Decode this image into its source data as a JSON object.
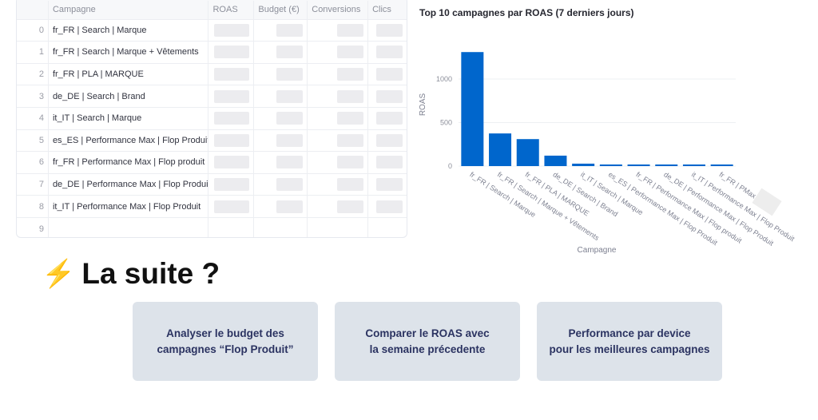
{
  "table": {
    "columns": [
      "",
      "Campagne",
      "ROAS",
      "Budget (€)",
      "Conversions",
      "Clics"
    ],
    "rows": [
      {
        "index": "0",
        "campagne": "fr_FR | Search | Marque"
      },
      {
        "index": "1",
        "campagne": "fr_FR | Search | Marque + Vêtements"
      },
      {
        "index": "2",
        "campagne": "fr_FR | PLA | MARQUE"
      },
      {
        "index": "3",
        "campagne": "de_DE | Search | Brand"
      },
      {
        "index": "4",
        "campagne": "it_IT | Search | Marque"
      },
      {
        "index": "5",
        "campagne": "es_ES | Performance Max | Flop Produit"
      },
      {
        "index": "6",
        "campagne": "fr_FR | Performance Max | Flop produit"
      },
      {
        "index": "7",
        "campagne": "de_DE | Performance Max | Flop Produit"
      },
      {
        "index": "8",
        "campagne": "it_IT | Performance Max | Flop Produit"
      },
      {
        "index": "9",
        "campagne": ""
      }
    ]
  },
  "chart_data": {
    "type": "bar",
    "title": "Top 10 campagnes par ROAS (7 derniers jours)",
    "xlabel": "Campagne",
    "ylabel": "ROAS",
    "ylim": [
      0,
      1350
    ],
    "yticks": [
      "0",
      "500",
      "1000"
    ],
    "categories": [
      "fr_FR | Search | Marque",
      "fr_FR | Search | Marque + Vêtements",
      "fr_FR | PLA | MARQUE",
      "de_DE | Search | Brand",
      "it_IT | Search | Marque",
      "es_ES | Performance Max | Flop Produit",
      "fr_FR | Performance Max | Flop produit",
      "de_DE | Performance Max | Flop Produit",
      "it_IT | Performance Max | Flop Produit",
      "fr_FR | PMax |"
    ],
    "values": [
      1310,
      375,
      310,
      120,
      28,
      10,
      10,
      10,
      10,
      10
    ],
    "color": "#0066cc"
  },
  "section": {
    "icon": "lightning-icon",
    "title": "La suite ?"
  },
  "cards": [
    {
      "line1": "Analyser le budget des",
      "line2": "campagnes “Flop Produit”"
    },
    {
      "line1": "Comparer le ROAS avec",
      "line2": "la semaine précedente"
    },
    {
      "line1": "Performance par device",
      "line2": "pour les meilleures campagnes"
    }
  ]
}
